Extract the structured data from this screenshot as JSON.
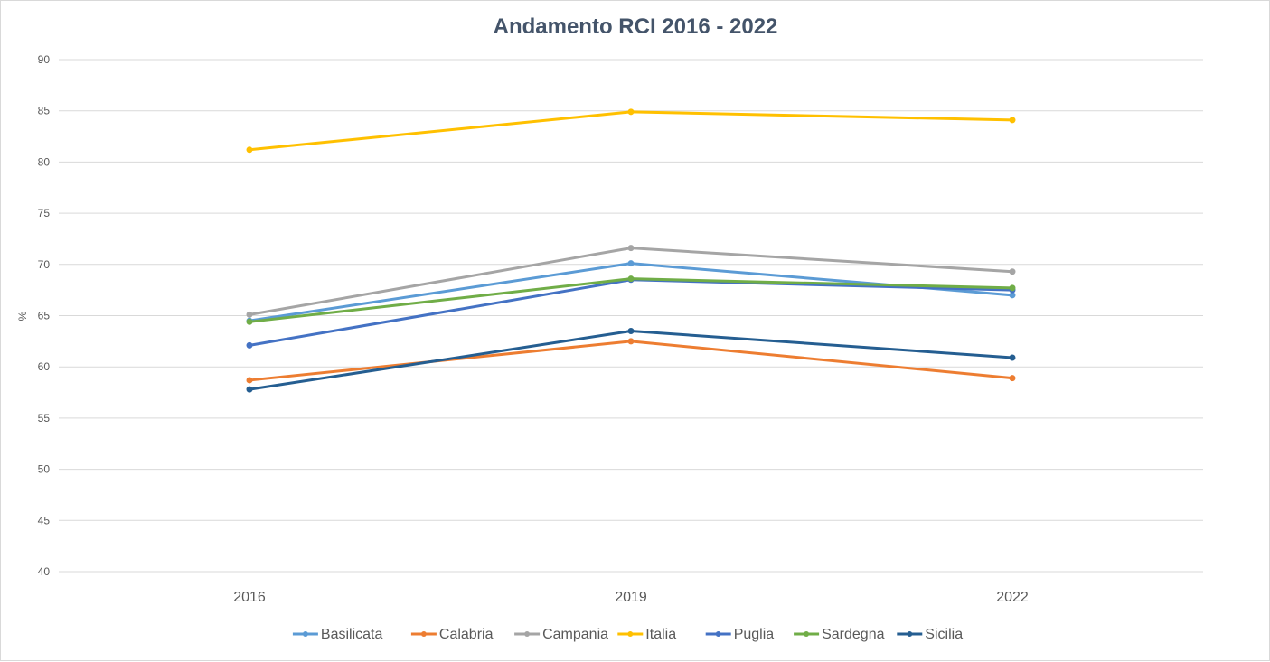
{
  "chart_data": {
    "type": "line",
    "title": "Andamento RCI 2016 - 2022",
    "xlabel": "",
    "ylabel": "%",
    "categories": [
      "2016",
      "2019",
      "2022"
    ],
    "ylim": [
      40,
      90
    ],
    "yticks": [
      40,
      45,
      50,
      55,
      60,
      65,
      70,
      75,
      80,
      85,
      90
    ],
    "grid": true,
    "legend_position": "bottom",
    "series": [
      {
        "name": "Basilicata",
        "color": "#5b9bd5",
        "values": [
          64.5,
          70.1,
          67.0
        ]
      },
      {
        "name": "Calabria",
        "color": "#ed7d31",
        "values": [
          58.7,
          62.5,
          58.9
        ]
      },
      {
        "name": "Campania",
        "color": "#a5a5a5",
        "values": [
          65.1,
          71.6,
          69.3
        ]
      },
      {
        "name": "Italia",
        "color": "#ffc000",
        "values": [
          81.2,
          84.9,
          84.1
        ]
      },
      {
        "name": "Puglia",
        "color": "#4472c4",
        "values": [
          62.1,
          68.5,
          67.5
        ]
      },
      {
        "name": "Sardegna",
        "color": "#70ad47",
        "values": [
          64.4,
          68.6,
          67.7
        ]
      },
      {
        "name": "Sicilia",
        "color": "#255e91",
        "values": [
          57.8,
          63.5,
          60.9
        ]
      }
    ]
  }
}
